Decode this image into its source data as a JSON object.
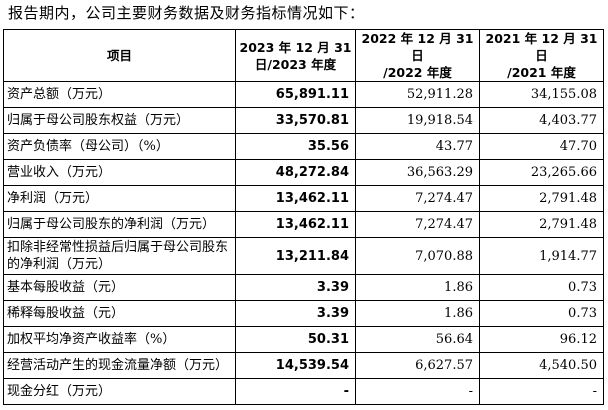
{
  "intro": "报告期内，公司主要财务数据及财务指标情况如下：",
  "headers": [
    {
      "line1": "项目",
      "line2": ""
    },
    {
      "line1": "2023 年 12 月 31",
      "line2": "日/2023 年度"
    },
    {
      "line1": "2022 年 12 月 31 日",
      "line2": "/2022 年度"
    },
    {
      "line1": "2021 年 12 月 31 日",
      "line2": "/2021 年度"
    }
  ],
  "rows": [
    {
      "label": "资产总额（万元）",
      "v2023": "65,891.11",
      "v2022": "52,911.28",
      "v2021": "34,155.08"
    },
    {
      "label": "归属于母公司股东权益（万元）",
      "v2023": "33,570.81",
      "v2022": "19,918.54",
      "v2021": "4,403.77"
    },
    {
      "label": "资产负债率（母公司）（%）",
      "v2023": "35.56",
      "v2022": "43.77",
      "v2021": "47.70"
    },
    {
      "label": "营业收入（万元）",
      "v2023": "48,272.84",
      "v2022": "36,563.29",
      "v2021": "23,265.66"
    },
    {
      "label": "净利润（万元）",
      "v2023": "13,462.11",
      "v2022": "7,274.47",
      "v2021": "2,791.48"
    },
    {
      "label": "归属于母公司股东的净利润（万元）",
      "v2023": "13,462.11",
      "v2022": "7,274.47",
      "v2021": "2,791.48"
    },
    {
      "label": "扣除非经常性损益后归属于母公司股东的净利润（万元）",
      "v2023": "13,211.84",
      "v2022": "7,070.88",
      "v2021": "1,914.77"
    },
    {
      "label": "基本每股收益（元）",
      "v2023": "3.39",
      "v2022": "1.86",
      "v2021": "0.73"
    },
    {
      "label": "稀释每股收益（元）",
      "v2023": "3.39",
      "v2022": "1.86",
      "v2021": "0.73"
    },
    {
      "label": "加权平均净资产收益率（%）",
      "v2023": "50.31",
      "v2022": "56.64",
      "v2021": "96.12"
    },
    {
      "label": "经营活动产生的现金流量净额（万元）",
      "v2023": "14,539.54",
      "v2022": "6,627.57",
      "v2021": "4,540.50"
    },
    {
      "label": "现金分红（万元）",
      "v2023": "-",
      "v2022": "-",
      "v2021": "-"
    }
  ]
}
